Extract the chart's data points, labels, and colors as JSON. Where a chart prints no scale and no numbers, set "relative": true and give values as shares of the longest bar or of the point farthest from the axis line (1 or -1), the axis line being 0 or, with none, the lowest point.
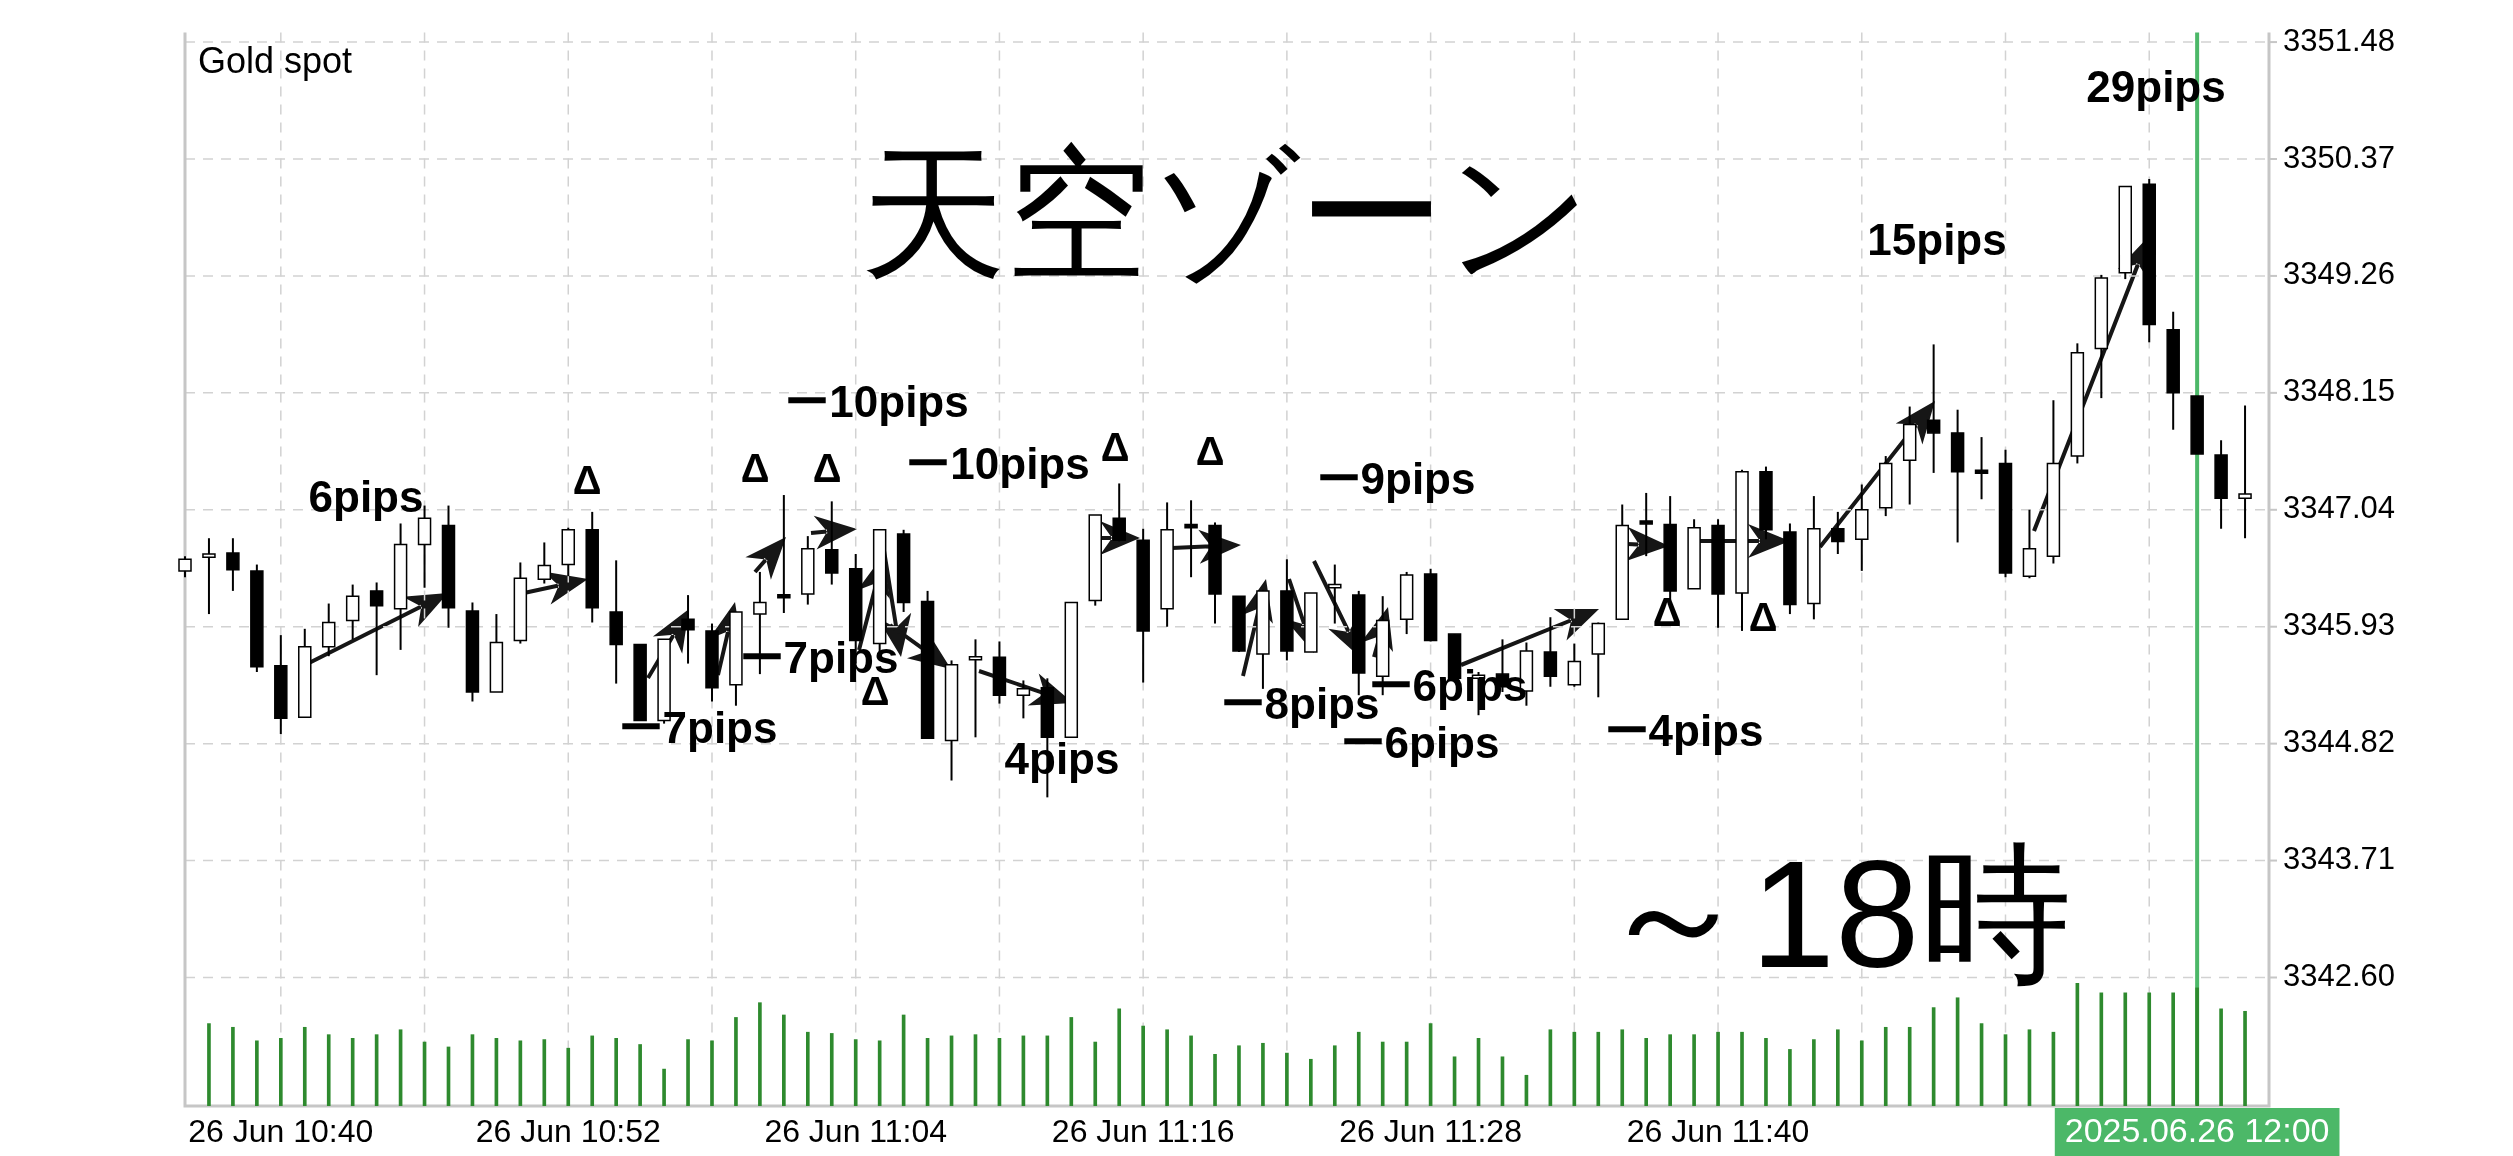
{
  "chart_data": [
    {
      "type": "candlestick",
      "title": "Gold spot",
      "x": [
        "2025-06-26T10:36",
        "2025-06-26T10:37",
        "2025-06-26T10:38",
        "2025-06-26T10:39",
        "2025-06-26T10:40",
        "2025-06-26T10:41",
        "2025-06-26T10:42",
        "2025-06-26T10:43",
        "2025-06-26T10:44",
        "2025-06-26T10:45",
        "2025-06-26T10:46",
        "2025-06-26T10:47",
        "2025-06-26T10:48",
        "2025-06-26T10:49",
        "2025-06-26T10:50",
        "2025-06-26T10:51",
        "2025-06-26T10:52",
        "2025-06-26T10:53",
        "2025-06-26T10:54",
        "2025-06-26T10:55",
        "2025-06-26T10:56",
        "2025-06-26T10:57",
        "2025-06-26T10:58",
        "2025-06-26T10:59",
        "2025-06-26T11:00",
        "2025-06-26T11:01",
        "2025-06-26T11:02",
        "2025-06-26T11:03",
        "2025-06-26T11:04",
        "2025-06-26T11:05",
        "2025-06-26T11:06",
        "2025-06-26T11:07",
        "2025-06-26T11:08",
        "2025-06-26T11:09",
        "2025-06-26T11:10",
        "2025-06-26T11:11",
        "2025-06-26T11:12",
        "2025-06-26T11:13",
        "2025-06-26T11:14",
        "2025-06-26T11:15",
        "2025-06-26T11:16",
        "2025-06-26T11:17",
        "2025-06-26T11:18",
        "2025-06-26T11:19",
        "2025-06-26T11:20",
        "2025-06-26T11:21",
        "2025-06-26T11:22",
        "2025-06-26T11:23",
        "2025-06-26T11:24",
        "2025-06-26T11:25",
        "2025-06-26T11:26",
        "2025-06-26T11:27",
        "2025-06-26T11:28",
        "2025-06-26T11:29",
        "2025-06-26T11:30",
        "2025-06-26T11:31",
        "2025-06-26T11:32",
        "2025-06-26T11:33",
        "2025-06-26T11:34",
        "2025-06-26T11:35",
        "2025-06-26T11:36",
        "2025-06-26T11:37",
        "2025-06-26T11:38",
        "2025-06-26T11:39",
        "2025-06-26T11:40",
        "2025-06-26T11:41",
        "2025-06-26T11:42",
        "2025-06-26T11:43",
        "2025-06-26T11:44",
        "2025-06-26T11:45",
        "2025-06-26T11:46",
        "2025-06-26T11:47",
        "2025-06-26T11:48",
        "2025-06-26T11:49",
        "2025-06-26T11:50",
        "2025-06-26T11:51",
        "2025-06-26T11:52",
        "2025-06-26T11:53",
        "2025-06-26T11:54",
        "2025-06-26T11:55",
        "2025-06-26T11:56",
        "2025-06-26T11:57",
        "2025-06-26T11:58",
        "2025-06-26T11:59",
        "2025-06-26T12:00",
        "2025-06-26T12:01",
        "2025-06-26T12:02"
      ],
      "ohlc": [
        [
          3346.46,
          3346.6,
          3346.4,
          3346.57
        ],
        [
          3346.59,
          3346.77,
          3346.05,
          3346.62
        ],
        [
          3346.63,
          3346.77,
          3346.27,
          3346.47
        ],
        [
          3346.46,
          3346.52,
          3345.5,
          3345.55
        ],
        [
          3345.56,
          3345.85,
          3344.91,
          3345.06
        ],
        [
          3345.07,
          3345.91,
          3345.07,
          3345.74
        ],
        [
          3345.74,
          3346.15,
          3345.65,
          3345.97
        ],
        [
          3345.99,
          3346.33,
          3345.81,
          3346.22
        ],
        [
          3346.27,
          3346.35,
          3345.47,
          3346.13
        ],
        [
          3346.1,
          3346.91,
          3345.71,
          3346.71
        ],
        [
          3346.71,
          3347.08,
          3346.3,
          3346.96
        ],
        [
          3346.89,
          3347.08,
          3345.92,
          3346.11
        ],
        [
          3346.08,
          3346.16,
          3345.22,
          3345.31
        ],
        [
          3345.31,
          3346.05,
          3345.31,
          3345.78
        ],
        [
          3345.8,
          3346.54,
          3345.77,
          3346.39
        ],
        [
          3346.38,
          3346.73,
          3346.34,
          3346.51
        ],
        [
          3346.52,
          3346.87,
          3346.41,
          3346.85
        ],
        [
          3346.85,
          3347.02,
          3345.97,
          3346.11
        ],
        [
          3346.07,
          3346.56,
          3345.39,
          3345.76
        ],
        [
          3345.76,
          3345.76,
          3345.04,
          3345.04
        ],
        [
          3345.04,
          3345.81,
          3345.01,
          3345.81
        ],
        [
          3346.0,
          3346.23,
          3345.58,
          3345.9
        ],
        [
          3345.89,
          3345.96,
          3345.22,
          3345.35
        ],
        [
          3345.38,
          3346.07,
          3345.18,
          3346.07
        ],
        [
          3346.05,
          3346.45,
          3345.48,
          3346.16
        ],
        [
          3346.22,
          3347.18,
          3346.06,
          3346.22
        ],
        [
          3346.24,
          3346.79,
          3346.14,
          3346.67
        ],
        [
          3346.66,
          3347.12,
          3346.33,
          3346.44
        ],
        [
          3346.48,
          3346.62,
          3345.58,
          3345.8
        ],
        [
          3345.77,
          3346.85,
          3345.64,
          3346.85
        ],
        [
          3346.81,
          3346.85,
          3346.07,
          3346.16
        ],
        [
          3346.17,
          3346.27,
          3344.87,
          3344.87
        ],
        [
          3344.85,
          3345.61,
          3344.47,
          3345.57
        ],
        [
          3345.62,
          3345.81,
          3344.88,
          3345.64
        ],
        [
          3345.64,
          3345.79,
          3345.2,
          3345.28
        ],
        [
          3345.28,
          3345.42,
          3345.06,
          3345.34
        ],
        [
          3345.35,
          3345.44,
          3344.31,
          3344.88
        ],
        [
          3344.88,
          3346.16,
          3344.88,
          3346.16
        ],
        [
          3346.18,
          3346.99,
          3346.13,
          3346.99
        ],
        [
          3346.96,
          3347.29,
          3346.74,
          3346.75
        ],
        [
          3346.75,
          3346.86,
          3345.4,
          3345.89
        ],
        [
          3346.1,
          3347.11,
          3345.93,
          3346.85
        ],
        [
          3346.9,
          3347.13,
          3346.4,
          3346.87
        ],
        [
          3346.89,
          3346.92,
          3345.96,
          3346.24
        ],
        [
          3346.22,
          3346.22,
          3345.69,
          3345.7
        ],
        [
          3345.67,
          3346.28,
          3345.34,
          3346.27
        ],
        [
          3346.27,
          3346.57,
          3345.61,
          3345.7
        ],
        [
          3345.69,
          3346.25,
          3345.69,
          3346.25
        ],
        [
          3346.3,
          3346.52,
          3345.96,
          3346.33
        ],
        [
          3346.23,
          3346.27,
          3345.28,
          3345.49
        ],
        [
          3345.46,
          3346.22,
          3345.28,
          3345.99
        ],
        [
          3346.0,
          3346.45,
          3345.86,
          3346.42
        ],
        [
          3346.43,
          3346.48,
          3345.79,
          3345.8
        ],
        [
          3345.86,
          3345.86,
          3345.43,
          3345.44
        ],
        [
          3345.44,
          3345.5,
          3345.09,
          3345.47
        ],
        [
          3345.48,
          3345.81,
          3345.31,
          3345.36
        ],
        [
          3345.32,
          3345.78,
          3345.18,
          3345.7
        ],
        [
          3345.69,
          3346.02,
          3345.36,
          3345.46
        ],
        [
          3345.38,
          3345.77,
          3345.36,
          3345.6
        ],
        [
          3345.67,
          3345.97,
          3345.26,
          3345.96
        ],
        [
          3346.0,
          3347.09,
          3346.0,
          3346.89
        ],
        [
          3346.92,
          3347.2,
          3346.6,
          3346.92
        ],
        [
          3346.9,
          3347.17,
          3346.18,
          3346.27
        ],
        [
          3346.29,
          3346.95,
          3346.29,
          3346.87
        ],
        [
          3346.89,
          3346.95,
          3345.92,
          3346.24
        ],
        [
          3346.25,
          3347.42,
          3345.89,
          3347.4
        ],
        [
          3347.4,
          3347.45,
          3346.76,
          3346.85
        ],
        [
          3346.83,
          3346.91,
          3346.05,
          3346.14
        ],
        [
          3346.15,
          3347.17,
          3346.0,
          3346.86
        ],
        [
          3346.86,
          3347.02,
          3346.62,
          3346.74
        ],
        [
          3346.76,
          3347.28,
          3346.46,
          3347.04
        ],
        [
          3347.06,
          3347.55,
          3346.98,
          3347.48
        ],
        [
          3347.51,
          3348.02,
          3347.09,
          3347.85
        ],
        [
          3347.89,
          3348.61,
          3347.39,
          3347.77
        ],
        [
          3347.77,
          3347.99,
          3346.73,
          3347.4
        ],
        [
          3347.4,
          3347.73,
          3347.14,
          3347.4
        ],
        [
          3347.48,
          3347.61,
          3346.4,
          3346.44
        ],
        [
          3346.41,
          3347.04,
          3346.39,
          3346.67
        ],
        [
          3346.6,
          3348.08,
          3346.53,
          3347.48
        ],
        [
          3347.55,
          3348.62,
          3347.48,
          3348.53
        ],
        [
          3348.57,
          3349.27,
          3348.1,
          3349.24
        ],
        [
          3349.29,
          3350.11,
          3349.23,
          3350.11
        ],
        [
          3350.13,
          3350.18,
          3348.63,
          3348.8
        ],
        [
          3348.75,
          3348.92,
          3347.8,
          3348.15
        ],
        [
          3348.12,
          3348.12,
          3347.57,
          3347.57
        ],
        [
          3347.56,
          3347.7,
          3346.86,
          3347.15
        ],
        [
          3347.15,
          3348.03,
          3346.77,
          3347.19
        ]
      ],
      "colors": [
        "#ffffff",
        "#ffffff",
        "#000000",
        "#000000",
        "#000000",
        "#ffffff",
        "#ffffff",
        "#ffffff",
        "#000000",
        "#ffffff",
        "#ffffff",
        "#000000",
        "#000000",
        "#ffffff",
        "#ffffff",
        "#ffffff",
        "#ffffff",
        "#000000",
        "#000000",
        "#000000",
        "#ffffff",
        "#000000",
        "#000000",
        "#ffffff",
        "#ffffff",
        "#000000",
        "#ffffff",
        "#000000",
        "#000000",
        "#ffffff",
        "#000000",
        "#000000",
        "#ffffff",
        "#ffffff",
        "#000000",
        "#ffffff",
        "#000000",
        "#ffffff",
        "#ffffff",
        "#000000",
        "#000000",
        "#ffffff",
        "#000000",
        "#000000",
        "#000000",
        "#ffffff",
        "#000000",
        "#ffffff",
        "#ffffff",
        "#000000",
        "#ffffff",
        "#ffffff",
        "#000000",
        "#000000",
        "#ffffff",
        "#000000",
        "#ffffff",
        "#000000",
        "#ffffff",
        "#ffffff",
        "#ffffff",
        "#000000",
        "#000000",
        "#ffffff",
        "#000000",
        "#ffffff",
        "#000000",
        "#000000",
        "#ffffff",
        "#000000",
        "#ffffff",
        "#ffffff",
        "#ffffff",
        "#000000",
        "#000000",
        "#000000",
        "#000000",
        "#ffffff",
        "#ffffff",
        "#ffffff",
        "#ffffff",
        "#ffffff",
        "#000000",
        "#000000",
        "#000000",
        "#000000",
        "#ffffff"
      ],
      "xlim": [
        "2025-06-26T10:36",
        "2025-06-26T12:03"
      ],
      "xticks": [
        {
          "value": "2025-06-26T10:40",
          "label": "26 Jun 10:40"
        },
        {
          "value": "2025-06-26T10:46",
          "label": null
        },
        {
          "value": "2025-06-26T10:52",
          "label": "26 Jun 10:52"
        },
        {
          "value": "2025-06-26T10:58",
          "label": null
        },
        {
          "value": "2025-06-26T11:04",
          "label": "26 Jun 11:04"
        },
        {
          "value": "2025-06-26T11:10",
          "label": null
        },
        {
          "value": "2025-06-26T11:16",
          "label": "26 Jun 11:16"
        },
        {
          "value": "2025-06-26T11:22",
          "label": null
        },
        {
          "value": "2025-06-26T11:28",
          "label": "26 Jun 11:28"
        },
        {
          "value": "2025-06-26T11:34",
          "label": null
        },
        {
          "value": "2025-06-26T11:40",
          "label": "26 Jun 11:40"
        },
        {
          "value": "2025-06-26T11:46",
          "label": null
        },
        {
          "value": "2025-06-26T11:52",
          "label": null
        },
        {
          "value": "2025-06-26T11:58",
          "label": null
        }
      ],
      "ylim": [
        3341.38,
        3351.57
      ],
      "yticks": [
        {
          "value": 3342.6,
          "label": "3342.60"
        },
        3343.71,
        3344.82,
        3345.93,
        3347.04,
        3348.15,
        3349.26,
        3350.37,
        3351.48
      ],
      "grid": true,
      "ref_lines": [
        {
          "axis": "x",
          "value": "2025-06-26T12:00",
          "label": "2025.06.26 12:00",
          "color": "#4cb868"
        }
      ],
      "annotations": [
        "天空ゾーン",
        "～18時",
        "6pips",
        "ー7pips",
        "ー7pips",
        "ー10pips",
        "ー10pips",
        "4pips",
        "ー8pips",
        "ー6pips",
        "ー6pips",
        "ー9pips",
        "ー4pips",
        "15pips",
        "29pips",
        "Δ",
        "Δ",
        "Δ",
        "Δ",
        "Δ",
        "Δ",
        "Δ",
        "Δ"
      ]
    },
    {
      "type": "bar",
      "relative": true,
      "tick_labels": false,
      "color": "#2e8a2e",
      "x": [
        "2025-06-26T10:37",
        "2025-06-26T10:38",
        "2025-06-26T10:39",
        "2025-06-26T10:40",
        "2025-06-26T10:41",
        "2025-06-26T10:42",
        "2025-06-26T10:43",
        "2025-06-26T10:44",
        "2025-06-26T10:45",
        "2025-06-26T10:46",
        "2025-06-26T10:47",
        "2025-06-26T10:48",
        "2025-06-26T10:49",
        "2025-06-26T10:50",
        "2025-06-26T10:51",
        "2025-06-26T10:52",
        "2025-06-26T10:53",
        "2025-06-26T10:54",
        "2025-06-26T10:55",
        "2025-06-26T10:56",
        "2025-06-26T10:57",
        "2025-06-26T10:58",
        "2025-06-26T10:59",
        "2025-06-26T11:00",
        "2025-06-26T11:01",
        "2025-06-26T11:02",
        "2025-06-26T11:03",
        "2025-06-26T11:04",
        "2025-06-26T11:05",
        "2025-06-26T11:06",
        "2025-06-26T11:07",
        "2025-06-26T11:08",
        "2025-06-26T11:09",
        "2025-06-26T11:10",
        "2025-06-26T11:11",
        "2025-06-26T11:12",
        "2025-06-26T11:13",
        "2025-06-26T11:14",
        "2025-06-26T11:15",
        "2025-06-26T11:16",
        "2025-06-26T11:17",
        "2025-06-26T11:18",
        "2025-06-26T11:19",
        "2025-06-26T11:20",
        "2025-06-26T11:21",
        "2025-06-26T11:22",
        "2025-06-26T11:23",
        "2025-06-26T11:24",
        "2025-06-26T11:25",
        "2025-06-26T11:26",
        "2025-06-26T11:27",
        "2025-06-26T11:28",
        "2025-06-26T11:29",
        "2025-06-26T11:30",
        "2025-06-26T11:31",
        "2025-06-26T11:32",
        "2025-06-26T11:33",
        "2025-06-26T11:34",
        "2025-06-26T11:35",
        "2025-06-26T11:36",
        "2025-06-26T11:37",
        "2025-06-26T11:38",
        "2025-06-26T11:39",
        "2025-06-26T11:40",
        "2025-06-26T11:41",
        "2025-06-26T11:42",
        "2025-06-26T11:43",
        "2025-06-26T11:44",
        "2025-06-26T11:45",
        "2025-06-26T11:46",
        "2025-06-26T11:47",
        "2025-06-26T11:48",
        "2025-06-26T11:49",
        "2025-06-26T11:50",
        "2025-06-26T11:51",
        "2025-06-26T11:52",
        "2025-06-26T11:53",
        "2025-06-26T11:54",
        "2025-06-26T11:55",
        "2025-06-26T11:56",
        "2025-06-26T11:57",
        "2025-06-26T11:58",
        "2025-06-26T11:59",
        "2025-06-26T12:00",
        "2025-06-26T12:01",
        "2025-06-26T12:02"
      ],
      "xlim": [
        "2025-06-26T10:36",
        "2025-06-26T12:03"
      ],
      "values": [
        0.67,
        0.64,
        0.53,
        0.55,
        0.64,
        0.58,
        0.55,
        0.58,
        0.62,
        0.52,
        0.48,
        0.58,
        0.55,
        0.53,
        0.54,
        0.47,
        0.57,
        0.55,
        0.5,
        0.3,
        0.54,
        0.53,
        0.72,
        0.84,
        0.74,
        0.6,
        0.59,
        0.54,
        0.53,
        0.74,
        0.55,
        0.57,
        0.58,
        0.55,
        0.57,
        0.57,
        0.72,
        0.52,
        0.79,
        0.65,
        0.62,
        0.57,
        0.42,
        0.49,
        0.51,
        0.43,
        0.38,
        0.49,
        0.6,
        0.52,
        0.52,
        0.67,
        0.4,
        0.55,
        0.4,
        0.25,
        0.62,
        0.6,
        0.6,
        0.62,
        0.55,
        0.58,
        0.58,
        0.6,
        0.6,
        0.55,
        0.46,
        0.54,
        0.62,
        0.53,
        0.64,
        0.64,
        0.8,
        0.88,
        0.67,
        0.58,
        0.62,
        0.6,
        1,
        0.92,
        0.92,
        0.92,
        0.92,
        0.96,
        0.79,
        0.77
      ]
    }
  ]
}
